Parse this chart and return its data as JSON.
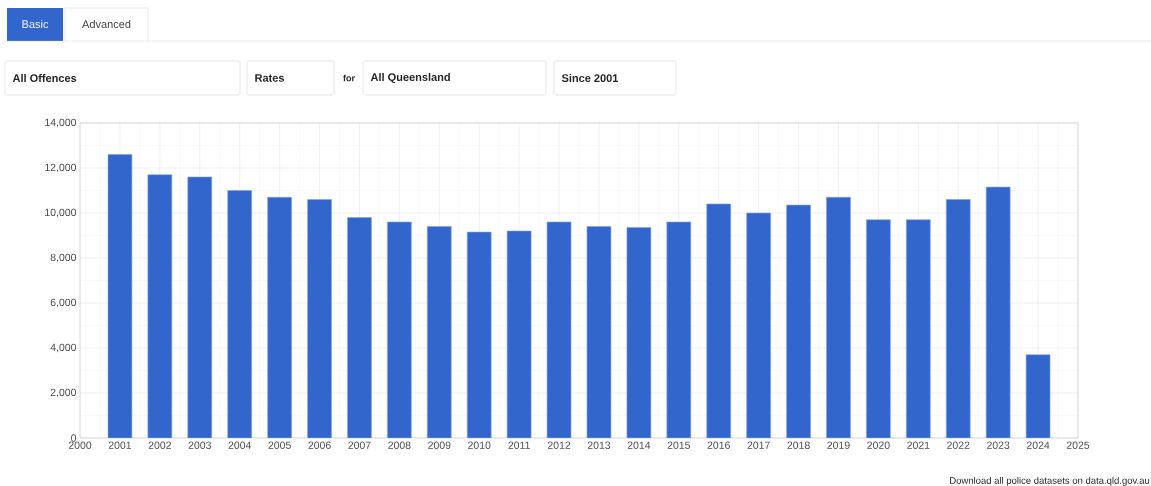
{
  "chart_data": {
    "type": "bar",
    "x": [
      2001,
      2002,
      2003,
      2004,
      2005,
      2006,
      2007,
      2008,
      2009,
      2010,
      2011,
      2012,
      2013,
      2014,
      2015,
      2016,
      2017,
      2018,
      2019,
      2020,
      2021,
      2022,
      2023,
      2024
    ],
    "values": [
      12600,
      11700,
      11600,
      11000,
      10700,
      10600,
      9800,
      9600,
      9400,
      9150,
      9200,
      9600,
      9400,
      9350,
      9600,
      10400,
      10000,
      10350,
      10700,
      9700,
      9700,
      10600,
      11150,
      3700
    ],
    "color": "#3366cc",
    "xlim": [
      2000,
      2025
    ],
    "xticks": [
      2000,
      2001,
      2002,
      2003,
      2004,
      2005,
      2006,
      2007,
      2008,
      2009,
      2010,
      2011,
      2012,
      2013,
      2014,
      2015,
      2016,
      2017,
      2018,
      2019,
      2020,
      2021,
      2022,
      2023,
      2024,
      2025
    ],
    "ylim": [
      0,
      14000
    ],
    "yticks": [
      {
        "value": 0,
        "label": "0"
      },
      {
        "value": 2000,
        "label": "2,000"
      },
      {
        "value": 4000,
        "label": "4,000"
      },
      {
        "value": 6000,
        "label": "6,000"
      },
      {
        "value": 8000,
        "label": "8,000"
      },
      {
        "value": 10000,
        "label": "10,000"
      },
      {
        "value": 12000,
        "label": "12,000"
      },
      {
        "value": 14000,
        "label": "14,000"
      }
    ],
    "grid": true,
    "annotations": [
      "Basic",
      "Advanced",
      "All Offences",
      "Rates",
      "for",
      "All Queensland",
      "Since 2001",
      "Download all police datasets on data.qld.gov.au"
    ]
  }
}
